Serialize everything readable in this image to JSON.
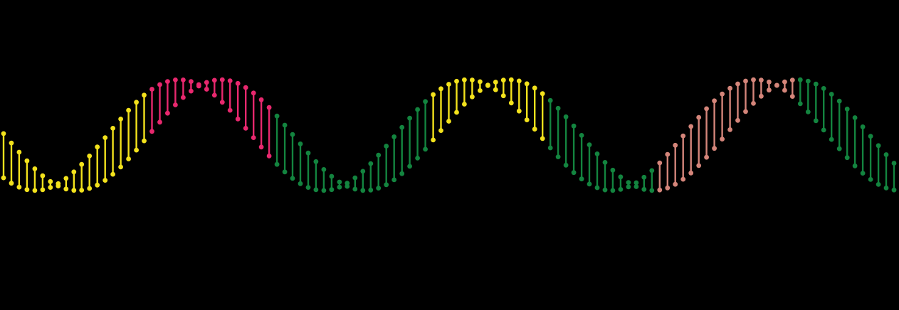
{
  "artwork": {
    "subject": "dna-helix",
    "background": "#000000",
    "segments": [
      {
        "name": "yellow-segment-1",
        "color": "#f3e21c",
        "rungs": 19
      },
      {
        "name": "pink-segment",
        "color": "#e8286e",
        "rungs": 12
      },
      {
        "name": "pink-segment-2",
        "color": "#e8286e",
        "rungs": 4
      },
      {
        "name": "green-segment-1",
        "color": "#13843f",
        "rungs": 20
      },
      {
        "name": "yellow-segment-2",
        "color": "#f3e21c",
        "rungs": 15
      },
      {
        "name": "green-segment-2",
        "color": "#13843f",
        "rungs": 14
      },
      {
        "name": "salmon-segment",
        "color": "#d4857a",
        "rungs": 18
      },
      {
        "name": "green-segment-3",
        "color": "#13843f",
        "rungs": 13
      }
    ]
  }
}
